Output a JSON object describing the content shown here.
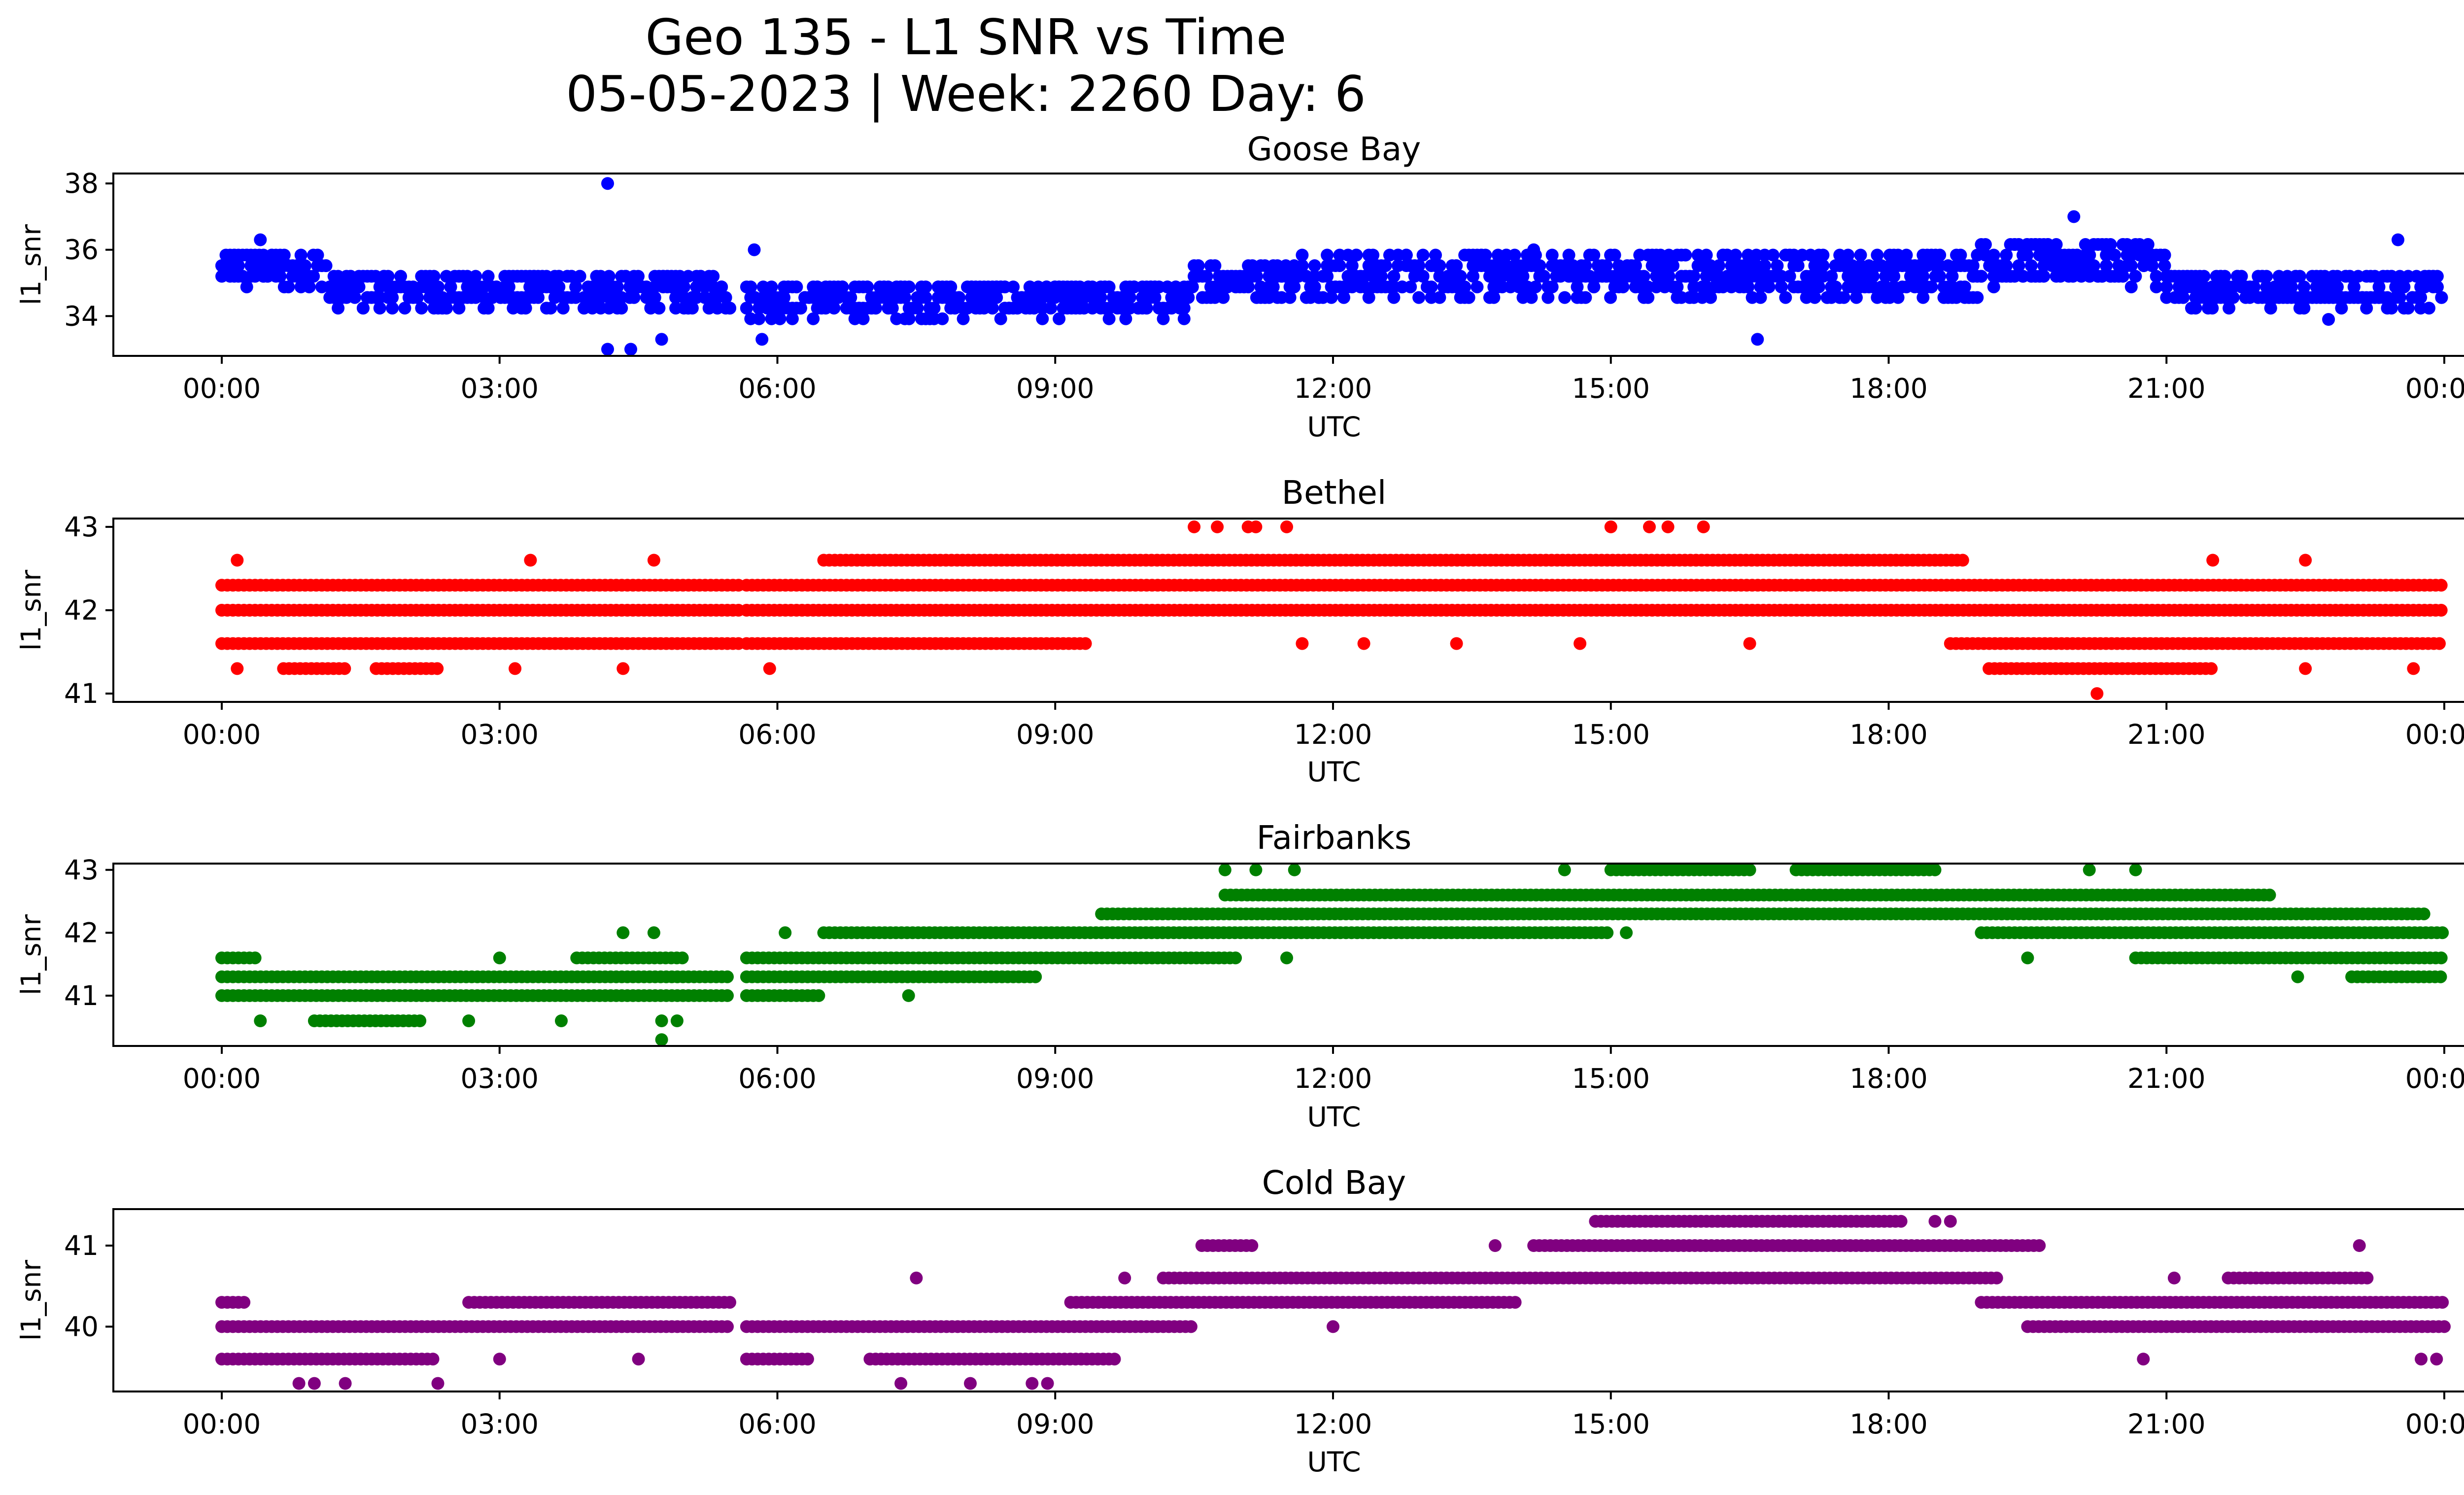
{
  "figure": {
    "title_line1": "Geo 135 - L1 SNR vs Time",
    "title_line2": "05-05-2023 | Week: 2260 Day: 6"
  },
  "chart_data": [
    {
      "type": "scatter",
      "title": "Goose Bay",
      "xlabel": "UTC",
      "ylabel": "l1_snr",
      "color": "#0000ff",
      "xlim": [
        "00:00",
        "24:00"
      ],
      "xticks": [
        "00:00",
        "03:00",
        "06:00",
        "09:00",
        "12:00",
        "15:00",
        "18:00",
        "21:00",
        "00:00"
      ],
      "ylim": [
        32.8,
        38.3
      ],
      "yticks": [
        34,
        36,
        38
      ],
      "bands": [
        {
          "x_start": "00:00",
          "x_end": "01:10",
          "y_min": 34.9,
          "y_max": 36.0,
          "step": 0.32
        },
        {
          "x_start": "01:10",
          "x_end": "05:30",
          "y_min": 34.2,
          "y_max": 35.3,
          "step": 0.32
        },
        {
          "x_start": "05:40",
          "x_end": "10:30",
          "y_min": 34.0,
          "y_max": 35.0,
          "step": 0.32
        },
        {
          "x_start": "10:30",
          "x_end": "11:40",
          "y_min": 34.6,
          "y_max": 35.6,
          "step": 0.32
        },
        {
          "x_start": "11:40",
          "x_end": "19:00",
          "y_min": 34.6,
          "y_max": 35.9,
          "step": 0.32
        },
        {
          "x_start": "19:00",
          "x_end": "21:00",
          "y_min": 35.0,
          "y_max": 36.3,
          "step": 0.32
        },
        {
          "x_start": "21:00",
          "x_end": "24:00",
          "y_min": 34.3,
          "y_max": 35.3,
          "step": 0.32
        }
      ],
      "outliers": [
        {
          "x": "04:10",
          "y": 38.0
        },
        {
          "x": "04:10",
          "y": 33.0
        },
        {
          "x": "04:25",
          "y": 33.0
        },
        {
          "x": "04:45",
          "y": 33.3
        },
        {
          "x": "05:50",
          "y": 33.3
        },
        {
          "x": "05:45",
          "y": 36.0
        },
        {
          "x": "16:35",
          "y": 33.3
        },
        {
          "x": "20:00",
          "y": 37.0
        },
        {
          "x": "22:45",
          "y": 33.9
        },
        {
          "x": "23:30",
          "y": 36.3
        },
        {
          "x": "00:25",
          "y": 36.3
        },
        {
          "x": "14:10",
          "y": 36.0
        }
      ]
    },
    {
      "type": "scatter",
      "title": "Bethel",
      "xlabel": "UTC",
      "ylabel": "l1_snr",
      "color": "#ff0000",
      "xlim": [
        "00:00",
        "24:00"
      ],
      "xticks": [
        "00:00",
        "03:00",
        "06:00",
        "09:00",
        "12:00",
        "15:00",
        "18:00",
        "21:00",
        "00:00"
      ],
      "ylim": [
        40.9,
        43.1
      ],
      "yticks": [
        41,
        42,
        43
      ],
      "levels": [
        {
          "y": 42.3,
          "segments": [
            [
              "00:00",
              "05:35"
            ],
            [
              "05:40",
              "24:00"
            ]
          ]
        },
        {
          "y": 42.0,
          "segments": [
            [
              "00:00",
              "05:35"
            ],
            [
              "05:40",
              "24:00"
            ]
          ]
        },
        {
          "y": 41.6,
          "segments": [
            [
              "00:00",
              "05:35"
            ],
            [
              "05:40",
              "09:20"
            ],
            [
              "18:40",
              "24:00"
            ]
          ]
        },
        {
          "y": 42.6,
          "segments": [
            [
              "06:30",
              "18:50"
            ]
          ]
        },
        {
          "y": 41.3,
          "segments": [
            [
              "00:40",
              "01:20"
            ],
            [
              "01:40",
              "02:20"
            ],
            [
              "19:05",
              "21:30"
            ]
          ]
        }
      ],
      "outliers": [
        {
          "x": "10:30",
          "y": 43.0
        },
        {
          "x": "10:45",
          "y": 43.0
        },
        {
          "x": "11:05",
          "y": 43.0
        },
        {
          "x": "11:10",
          "y": 43.0
        },
        {
          "x": "11:30",
          "y": 43.0
        },
        {
          "x": "15:00",
          "y": 43.0
        },
        {
          "x": "15:25",
          "y": 43.0
        },
        {
          "x": "15:37",
          "y": 43.0
        },
        {
          "x": "16:00",
          "y": 43.0
        },
        {
          "x": "20:15",
          "y": 41.0
        },
        {
          "x": "00:10",
          "y": 42.6
        },
        {
          "x": "03:20",
          "y": 42.6
        },
        {
          "x": "04:40",
          "y": 42.6
        },
        {
          "x": "21:30",
          "y": 42.6
        },
        {
          "x": "22:30",
          "y": 42.6
        },
        {
          "x": "11:40",
          "y": 41.6
        },
        {
          "x": "12:20",
          "y": 41.6
        },
        {
          "x": "13:20",
          "y": 41.6
        },
        {
          "x": "14:40",
          "y": 41.6
        },
        {
          "x": "16:30",
          "y": 41.6
        },
        {
          "x": "00:10",
          "y": 41.3
        },
        {
          "x": "03:10",
          "y": 41.3
        },
        {
          "x": "04:20",
          "y": 41.3
        },
        {
          "x": "05:55",
          "y": 41.3
        },
        {
          "x": "22:30",
          "y": 41.3
        },
        {
          "x": "23:40",
          "y": 41.3
        }
      ]
    },
    {
      "type": "scatter",
      "title": "Fairbanks",
      "xlabel": "UTC",
      "ylabel": "l1_snr",
      "color": "#008000",
      "xlim": [
        "00:00",
        "24:00"
      ],
      "xticks": [
        "00:00",
        "03:00",
        "06:00",
        "09:00",
        "12:00",
        "15:00",
        "18:00",
        "21:00",
        "00:00"
      ],
      "ylim": [
        40.2,
        43.1
      ],
      "yticks": [
        41,
        42,
        43
      ],
      "levels": [
        {
          "y": 41.0,
          "segments": [
            [
              "00:00",
              "05:30"
            ],
            [
              "05:40",
              "06:30"
            ]
          ]
        },
        {
          "y": 41.3,
          "segments": [
            [
              "00:00",
              "05:30"
            ],
            [
              "05:40",
              "08:50"
            ],
            [
              "23:00",
              "24:00"
            ]
          ]
        },
        {
          "y": 41.6,
          "segments": [
            [
              "00:00",
              "00:25"
            ],
            [
              "03:50",
              "05:00"
            ],
            [
              "05:40",
              "11:00"
            ],
            [
              "20:40",
              "24:00"
            ]
          ]
        },
        {
          "y": 42.0,
          "segments": [
            [
              "06:30",
              "15:00"
            ],
            [
              "19:00",
              "24:00"
            ]
          ]
        },
        {
          "y": 42.3,
          "segments": [
            [
              "09:30",
              "23:50"
            ]
          ]
        },
        {
          "y": 42.6,
          "segments": [
            [
              "10:50",
              "22:10"
            ]
          ]
        },
        {
          "y": 43.0,
          "segments": [
            [
              "15:00",
              "16:30"
            ],
            [
              "17:00",
              "18:30"
            ]
          ]
        },
        {
          "y": 40.6,
          "segments": [
            [
              "01:00",
              "02:10"
            ]
          ]
        }
      ],
      "outliers": [
        {
          "x": "04:45",
          "y": 40.3
        },
        {
          "x": "04:45",
          "y": 40.6
        },
        {
          "x": "04:55",
          "y": 40.6
        },
        {
          "x": "04:20",
          "y": 42.0
        },
        {
          "x": "04:40",
          "y": 42.0
        },
        {
          "x": "06:05",
          "y": 42.0
        },
        {
          "x": "03:00",
          "y": 41.6
        },
        {
          "x": "07:25",
          "y": 41.0
        },
        {
          "x": "11:10",
          "y": 43.0
        },
        {
          "x": "10:50",
          "y": 43.0
        },
        {
          "x": "11:35",
          "y": 43.0
        },
        {
          "x": "14:30",
          "y": 43.0
        },
        {
          "x": "20:10",
          "y": 43.0
        },
        {
          "x": "20:40",
          "y": 43.0
        },
        {
          "x": "22:25",
          "y": 41.3
        },
        {
          "x": "19:30",
          "y": 41.6
        },
        {
          "x": "11:30",
          "y": 41.6
        },
        {
          "x": "15:10",
          "y": 42.0
        },
        {
          "x": "00:25",
          "y": 40.6
        },
        {
          "x": "02:40",
          "y": 40.6
        },
        {
          "x": "03:40",
          "y": 40.6
        }
      ]
    },
    {
      "type": "scatter",
      "title": "Cold Bay",
      "xlabel": "UTC",
      "ylabel": "l1_snr",
      "color": "#800080",
      "xlim": [
        "00:00",
        "24:00"
      ],
      "xticks": [
        "00:00",
        "03:00",
        "06:00",
        "09:00",
        "12:00",
        "15:00",
        "18:00",
        "21:00",
        "00:00"
      ],
      "ylim": [
        39.2,
        41.45
      ],
      "yticks": [
        40,
        41
      ],
      "levels": [
        {
          "y": 40.0,
          "segments": [
            [
              "00:00",
              "05:30"
            ],
            [
              "05:40",
              "10:30"
            ],
            [
              "19:30",
              "24:00"
            ]
          ]
        },
        {
          "y": 39.6,
          "segments": [
            [
              "00:00",
              "02:20"
            ],
            [
              "05:40",
              "06:20"
            ],
            [
              "07:00",
              "09:40"
            ]
          ]
        },
        {
          "y": 40.3,
          "segments": [
            [
              "00:00",
              "00:15"
            ],
            [
              "02:40",
              "05:30"
            ],
            [
              "09:10",
              "14:00"
            ],
            [
              "19:00",
              "24:00"
            ]
          ]
        },
        {
          "y": 40.6,
          "segments": [
            [
              "10:10",
              "19:10"
            ],
            [
              "21:40",
              "23:10"
            ]
          ]
        },
        {
          "y": 41.0,
          "segments": [
            [
              "10:35",
              "11:10"
            ],
            [
              "14:10",
              "19:40"
            ]
          ]
        },
        {
          "y": 41.3,
          "segments": [
            [
              "14:50",
              "18:10"
            ]
          ]
        }
      ],
      "outliers": [
        {
          "x": "00:50",
          "y": 39.3
        },
        {
          "x": "01:00",
          "y": 39.3
        },
        {
          "x": "01:20",
          "y": 39.3
        },
        {
          "x": "02:20",
          "y": 39.3
        },
        {
          "x": "08:05",
          "y": 39.3
        },
        {
          "x": "08:45",
          "y": 39.3
        },
        {
          "x": "08:55",
          "y": 39.3
        },
        {
          "x": "07:20",
          "y": 39.3
        },
        {
          "x": "20:45",
          "y": 39.6
        },
        {
          "x": "23:55",
          "y": 39.6
        },
        {
          "x": "23:45",
          "y": 39.6
        },
        {
          "x": "18:30",
          "y": 41.3
        },
        {
          "x": "18:40",
          "y": 41.3
        },
        {
          "x": "13:45",
          "y": 41.0
        },
        {
          "x": "23:05",
          "y": 41.0
        },
        {
          "x": "09:45",
          "y": 40.6
        },
        {
          "x": "21:05",
          "y": 40.6
        },
        {
          "x": "07:30",
          "y": 40.6
        },
        {
          "x": "12:00",
          "y": 40.0
        },
        {
          "x": "03:00",
          "y": 39.6
        },
        {
          "x": "04:30",
          "y": 39.6
        }
      ]
    }
  ]
}
